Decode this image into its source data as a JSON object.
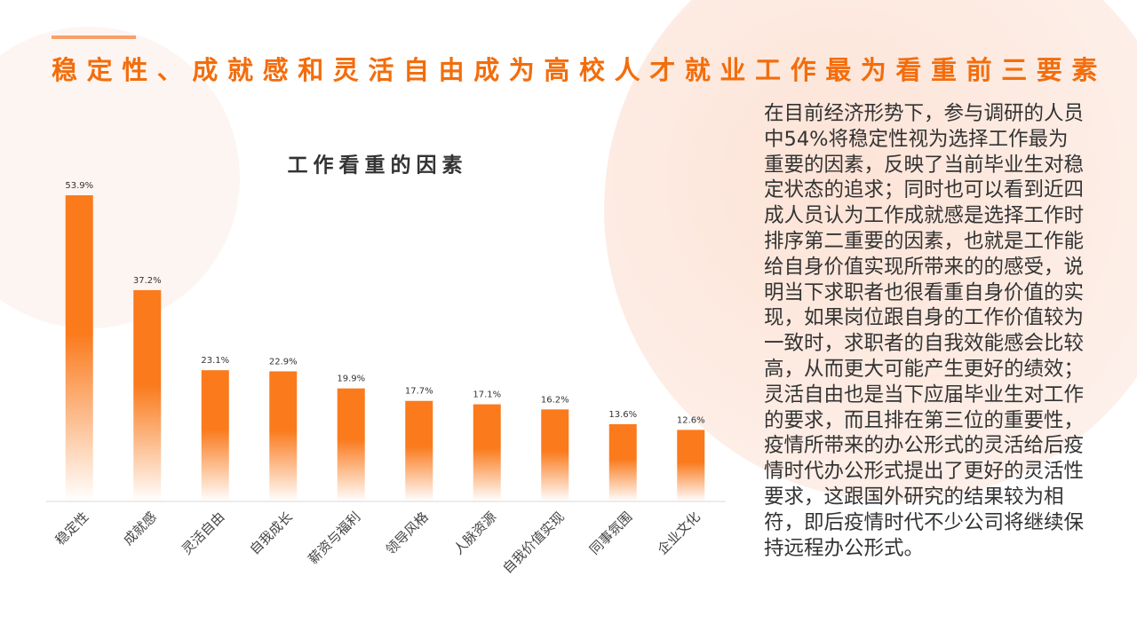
{
  "header": {
    "title": "稳定性、成就感和灵活自由成为高校人才就业工作最为看重前三要素"
  },
  "body": {
    "text": "在目前经济形势下，参与调研的人员中54%将稳定性视为选择工作最为重要的因素，反映了当前毕业生对稳定状态的追求；同时也可以看到近四成人员认为工作成就感是选择工作时排序第二重要的因素，也就是工作能给自身价值实现所带来的的感受，说明当下求职者也很看重自身价值的实现，如果岗位跟自身的工作价值较为一致时，求职者的自我效能感会比较高，从而更大可能产生更好的绩效；灵活自由也是当下应届毕业生对工作的要求，而且排在第三位的重要性，疫情所带来的办公形式的灵活给后疫情时代办公形式提出了更好的灵活性要求，这跟国外研究的结果较为相符，即后疫情时代不少公司将继续保持远程办公形式。"
  },
  "chart_data": {
    "type": "bar",
    "title": "工作看重的因素",
    "categories": [
      "稳定性",
      "成就感",
      "灵活自由",
      "自我成长",
      "薪资与福利",
      "领导风格",
      "人脉资源",
      "自我价值实现",
      "同事氛围",
      "企业文化"
    ],
    "values": [
      53.9,
      37.2,
      23.1,
      22.9,
      19.9,
      17.7,
      17.1,
      16.2,
      13.6,
      12.6
    ],
    "value_labels": [
      "53.9%",
      "37.2%",
      "23.1%",
      "22.9%",
      "19.9%",
      "17.7%",
      "17.1%",
      "16.2%",
      "13.6%",
      "12.6%"
    ],
    "color": "#fa7a1c"
  }
}
